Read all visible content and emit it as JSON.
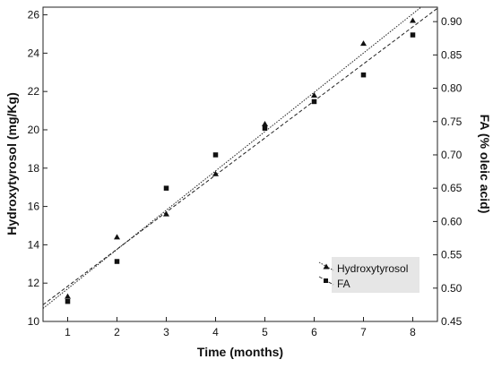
{
  "chart_data": {
    "type": "scatter",
    "xlabel": "Time (months)",
    "ylabel": "Hydroxytyrosol (mg/Kg)",
    "y2label": "FA (% oleic acid)",
    "xlim": [
      0.5,
      8.5
    ],
    "ylim": [
      10,
      26.4
    ],
    "y2lim": [
      0.45,
      0.9217
    ],
    "x_ticks": [
      "1",
      "2",
      "3",
      "4",
      "5",
      "6",
      "7",
      "8"
    ],
    "y_ticks": [
      "10",
      "12",
      "14",
      "16",
      "18",
      "20",
      "22",
      "24",
      "26"
    ],
    "y2_ticks": [
      "0.45",
      "0.50",
      "0.55",
      "0.60",
      "0.65",
      "0.70",
      "0.75",
      "0.80",
      "0.85",
      "0.90"
    ],
    "grid": false,
    "legend_position": "bottom-right",
    "series": [
      {
        "name": "Hydroxytyrosol",
        "axis": "left",
        "marker": "triangle",
        "line_style": "dotted",
        "x": [
          1,
          2,
          3,
          4,
          5,
          6,
          7,
          8
        ],
        "y": [
          11.3,
          14.4,
          15.6,
          17.7,
          20.3,
          21.8,
          24.5,
          25.7
        ],
        "fit": {
          "x": [
            0.5,
            8.5
          ],
          "y": [
            10.68,
            27.08
          ]
        }
      },
      {
        "name": "FA",
        "axis": "right",
        "marker": "square",
        "line_style": "dashed",
        "x": [
          1,
          2,
          3,
          4,
          5,
          6,
          7,
          8
        ],
        "y": [
          0.48,
          0.54,
          0.65,
          0.7,
          0.74,
          0.78,
          0.82,
          0.88
        ],
        "fit": {
          "x": [
            0.5,
            8.5
          ],
          "y": [
            0.475,
            0.92
          ]
        }
      }
    ]
  }
}
